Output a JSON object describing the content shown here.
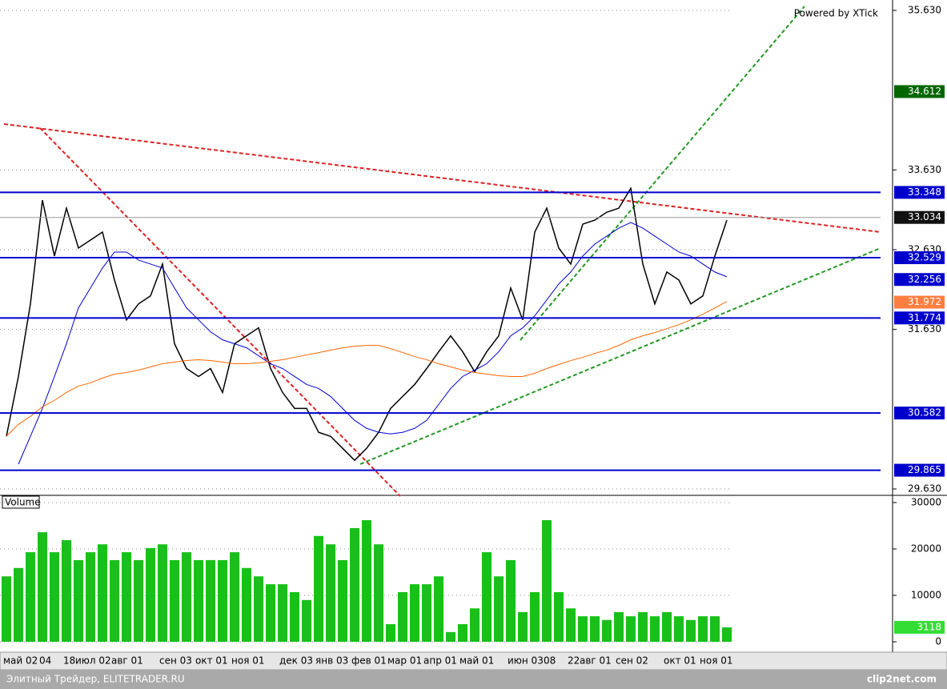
{
  "chart_data": [
    {
      "type": "line",
      "credit": "Powered by XTick",
      "ylim": [
        29.56,
        35.76
      ],
      "yticks": [
        {
          "value": 29.63,
          "label": "29.630"
        },
        {
          "value": 31.63,
          "label": "31.630"
        },
        {
          "value": 32.63,
          "label": "32.630"
        },
        {
          "value": 33.63,
          "label": "33.630"
        },
        {
          "value": 35.63,
          "label": "35.630"
        }
      ],
      "grid": true,
      "series": [
        {
          "color": "#000000",
          "values": [
            30.29,
            31.04,
            31.95,
            33.25,
            32.55,
            33.15,
            32.65,
            32.75,
            32.85,
            32.25,
            31.75,
            31.95,
            32.05,
            32.45,
            31.45,
            31.14,
            31.04,
            31.14,
            30.84,
            31.45,
            31.55,
            31.65,
            31.14,
            30.84,
            30.64,
            30.64,
            30.34,
            30.29,
            30.14,
            29.99,
            30.14,
            30.34,
            30.64,
            30.79,
            30.94,
            31.14,
            31.35,
            31.55,
            31.35,
            31.1,
            31.35,
            31.55,
            32.15,
            31.75,
            32.85,
            33.15,
            32.65,
            32.45,
            32.95,
            33.0,
            33.1,
            33.15,
            33.4,
            32.45,
            31.95,
            32.35,
            32.25,
            31.95,
            32.05,
            32.55,
            33.0
          ]
        },
        {
          "color": "#0000cc",
          "values": [
            null,
            29.94,
            30.29,
            30.64,
            31.04,
            31.45,
            31.9,
            32.15,
            32.4,
            32.6,
            32.6,
            32.5,
            32.45,
            32.4,
            32.15,
            31.9,
            31.75,
            31.6,
            31.5,
            31.45,
            31.4,
            31.3,
            31.2,
            31.14,
            31.04,
            30.94,
            30.89,
            30.79,
            30.64,
            30.49,
            30.39,
            30.34,
            30.32,
            30.34,
            30.39,
            30.49,
            30.69,
            30.89,
            31.04,
            31.12,
            31.2,
            31.35,
            31.55,
            31.65,
            31.8,
            32.0,
            32.2,
            32.35,
            32.55,
            32.7,
            32.8,
            32.9,
            32.97,
            32.9,
            32.8,
            32.7,
            32.6,
            32.55,
            32.45,
            32.35,
            32.29
          ]
        },
        {
          "color": "#ff6600",
          "values": [
            30.29,
            30.44,
            30.54,
            30.66,
            30.74,
            30.84,
            30.92,
            30.96,
            31.02,
            31.07,
            31.09,
            31.12,
            31.16,
            31.2,
            31.22,
            31.24,
            31.25,
            31.24,
            31.22,
            31.2,
            31.2,
            31.21,
            31.23,
            31.25,
            31.28,
            31.31,
            31.34,
            31.37,
            31.4,
            31.42,
            31.43,
            31.43,
            31.39,
            31.34,
            31.29,
            31.25,
            31.2,
            31.16,
            31.12,
            31.09,
            31.07,
            31.05,
            31.04,
            31.04,
            31.08,
            31.14,
            31.19,
            31.24,
            31.28,
            31.33,
            31.37,
            31.43,
            31.5,
            31.55,
            31.59,
            31.64,
            31.69,
            31.75,
            31.82,
            31.9,
            31.98
          ]
        }
      ],
      "price_labels": [
        {
          "value": 34.612,
          "label": "34.612",
          "color": "#006600",
          "line": false
        },
        {
          "value": 33.348,
          "label": "33.348",
          "color": "#0000cc",
          "line": true
        },
        {
          "value": 33.034,
          "label": "33.034",
          "color": "#111111",
          "line": true
        },
        {
          "value": 32.529,
          "label": "32.529",
          "color": "#0000cc",
          "line": true
        },
        {
          "value": 32.256,
          "label": "32.256",
          "color": "#0000cc",
          "line": false
        },
        {
          "value": 31.972,
          "label": "31.972",
          "color": "#ff7f40",
          "line": false
        },
        {
          "value": 31.774,
          "label": "31.774",
          "color": "#0000cc",
          "line": true
        },
        {
          "value": 30.582,
          "label": "30.582",
          "color": "#0000cc",
          "line": true
        },
        {
          "value": 29.865,
          "label": "29.865",
          "color": "#0000cc",
          "line": true
        }
      ]
    },
    {
      "type": "bar",
      "title": "Volume",
      "color": "#19c019",
      "ylim": [
        0,
        30000
      ],
      "yticks": [
        0,
        10000,
        20000,
        30000
      ],
      "grid": true,
      "categories": [
        "май 02",
        null,
        null,
        "04",
        null,
        "18",
        "июл 02",
        null,
        null,
        "авг 01",
        null,
        null,
        null,
        "сен 03",
        null,
        null,
        "окт 01",
        null,
        null,
        "ноя 01",
        null,
        null,
        null,
        "дек 03",
        null,
        null,
        "янв 03",
        null,
        null,
        "фев 01",
        null,
        null,
        "мар 01",
        null,
        null,
        "апр 01",
        null,
        null,
        "май 01",
        null,
        null,
        null,
        "июн 03",
        null,
        null,
        "08",
        null,
        "22",
        "авг 01",
        null,
        null,
        "сен 02",
        null,
        null,
        null,
        "окт 01",
        null,
        null,
        "ноя 01",
        null,
        null
      ],
      "values": [
        14100,
        15900,
        19300,
        23600,
        19300,
        21900,
        17600,
        19300,
        21000,
        17600,
        19300,
        17600,
        20200,
        21000,
        17600,
        19300,
        17600,
        17600,
        17600,
        19300,
        15900,
        14100,
        12400,
        12400,
        10700,
        9000,
        22800,
        21000,
        17600,
        24500,
        26200,
        21000,
        3800,
        10700,
        12400,
        12400,
        14100,
        2100,
        3800,
        7200,
        19300,
        14100,
        17600,
        6400,
        10700,
        26200,
        10700,
        7200,
        5500,
        5500,
        4700,
        6400,
        5500,
        6400,
        5500,
        6400,
        5500,
        4700,
        5500,
        5500,
        3118
      ],
      "last_label": {
        "value": 3118,
        "label": "3118"
      }
    }
  ],
  "footer": {
    "left": "Элитный Трейдер, ELITETRADER.RU",
    "right": "clip2net.com"
  }
}
